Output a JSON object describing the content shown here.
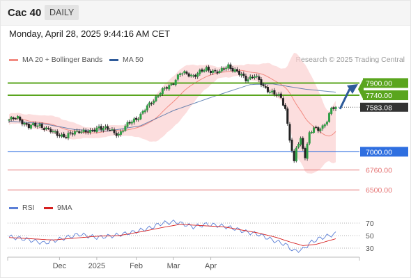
{
  "header": {
    "title": "Cac 40",
    "period": "DAILY"
  },
  "datetime": "Monday, April 28, 2025 9:44:16 AM CET",
  "legend": {
    "items": [
      {
        "label": "MA 20 + Bollinger Bands",
        "color": "#f28b82"
      },
      {
        "label": "MA 50",
        "color": "#2e5b9a"
      }
    ],
    "credit": "Research © 2025 Trading Central"
  },
  "indicator_legend": {
    "items": [
      {
        "label": "RSI",
        "color": "#5b7fd6"
      },
      {
        "label": "9MA",
        "color": "#d62020"
      }
    ]
  },
  "chart_data": [
    {
      "type": "candlestick",
      "title": "Cac 40",
      "x_tick_labels": [
        "Dec",
        "2025",
        "Feb",
        "Mar",
        "Apr"
      ],
      "ylim": [
        6420,
        8050
      ],
      "levels": [
        {
          "value": 7900.0,
          "label": "7900.00",
          "kind": "resistance",
          "color": "#5aa51e"
        },
        {
          "value": 7740.0,
          "label": "7740.00",
          "kind": "resistance",
          "color": "#5aa51e"
        },
        {
          "value": 7583.08,
          "label": "7583.08",
          "kind": "last",
          "color": "#333333"
        },
        {
          "value": 7000.0,
          "label": "7000.00",
          "kind": "pivot",
          "color": "#2f6fe0"
        },
        {
          "value": 6760.0,
          "label": "6760.00",
          "kind": "support",
          "color": "#e57373"
        },
        {
          "value": 6500.0,
          "label": "6500.00",
          "kind": "support",
          "color": "#e57373"
        }
      ],
      "trend_arrow": {
        "direction": "up",
        "from": 7560,
        "to": 7850,
        "color": "#2e5b9a"
      },
      "anchors": [
        [
          0,
          7420
        ],
        [
          4,
          7440
        ],
        [
          9,
          7330
        ],
        [
          14,
          7350
        ],
        [
          20,
          7250
        ],
        [
          26,
          7200
        ],
        [
          32,
          7280
        ],
        [
          37,
          7250
        ],
        [
          41,
          7330
        ],
        [
          46,
          7280
        ],
        [
          50,
          7230
        ],
        [
          55,
          7380
        ],
        [
          60,
          7480
        ],
        [
          64,
          7620
        ],
        [
          69,
          7780
        ],
        [
          74,
          7880
        ],
        [
          78,
          8030
        ],
        [
          84,
          8000
        ],
        [
          90,
          8080
        ],
        [
          96,
          8040
        ],
        [
          100,
          8130
        ],
        [
          104,
          8040
        ],
        [
          108,
          7950
        ],
        [
          112,
          8000
        ],
        [
          116,
          7850
        ],
        [
          120,
          7780
        ],
        [
          124,
          7700
        ],
        [
          126,
          7560
        ],
        [
          128,
          7180
        ],
        [
          130,
          6850
        ],
        [
          131,
          7050
        ],
        [
          133,
          7150
        ],
        [
          135,
          6950
        ],
        [
          137,
          7250
        ],
        [
          139,
          7300
        ],
        [
          141,
          7280
        ],
        [
          143,
          7330
        ],
        [
          145,
          7420
        ],
        [
          147,
          7560
        ],
        [
          149,
          7583.08
        ]
      ],
      "ma50_anchors": [
        [
          0,
          7400
        ],
        [
          15,
          7370
        ],
        [
          30,
          7290
        ],
        [
          45,
          7270
        ],
        [
          60,
          7340
        ],
        [
          75,
          7540
        ],
        [
          95,
          7740
        ],
        [
          110,
          7880
        ],
        [
          120,
          7890
        ],
        [
          135,
          7820
        ],
        [
          149,
          7780
        ]
      ]
    },
    {
      "type": "line",
      "title": "RSI",
      "y_tick_labels": [
        "70",
        "50",
        "30"
      ],
      "ylim": [
        20,
        80
      ],
      "levels": [
        70,
        50,
        30
      ],
      "rsi_anchors": [
        [
          0,
          48
        ],
        [
          8,
          44
        ],
        [
          16,
          38
        ],
        [
          24,
          45
        ],
        [
          32,
          52
        ],
        [
          40,
          47
        ],
        [
          48,
          50
        ],
        [
          56,
          55
        ],
        [
          64,
          62
        ],
        [
          70,
          70
        ],
        [
          76,
          72
        ],
        [
          84,
          64
        ],
        [
          90,
          68
        ],
        [
          96,
          66
        ],
        [
          102,
          62
        ],
        [
          108,
          56
        ],
        [
          114,
          52
        ],
        [
          120,
          43
        ],
        [
          126,
          36
        ],
        [
          130,
          25
        ],
        [
          134,
          28
        ],
        [
          138,
          40
        ],
        [
          142,
          46
        ],
        [
          146,
          50
        ],
        [
          149,
          53
        ]
      ],
      "ma_anchors": [
        [
          0,
          47
        ],
        [
          10,
          45
        ],
        [
          20,
          43
        ],
        [
          30,
          46
        ],
        [
          40,
          49
        ],
        [
          50,
          50
        ],
        [
          60,
          56
        ],
        [
          70,
          63
        ],
        [
          78,
          68
        ],
        [
          88,
          66
        ],
        [
          98,
          64
        ],
        [
          106,
          59
        ],
        [
          114,
          54
        ],
        [
          122,
          47
        ],
        [
          128,
          40
        ],
        [
          134,
          34
        ],
        [
          140,
          36
        ],
        [
          146,
          42
        ],
        [
          149,
          45
        ]
      ]
    }
  ]
}
